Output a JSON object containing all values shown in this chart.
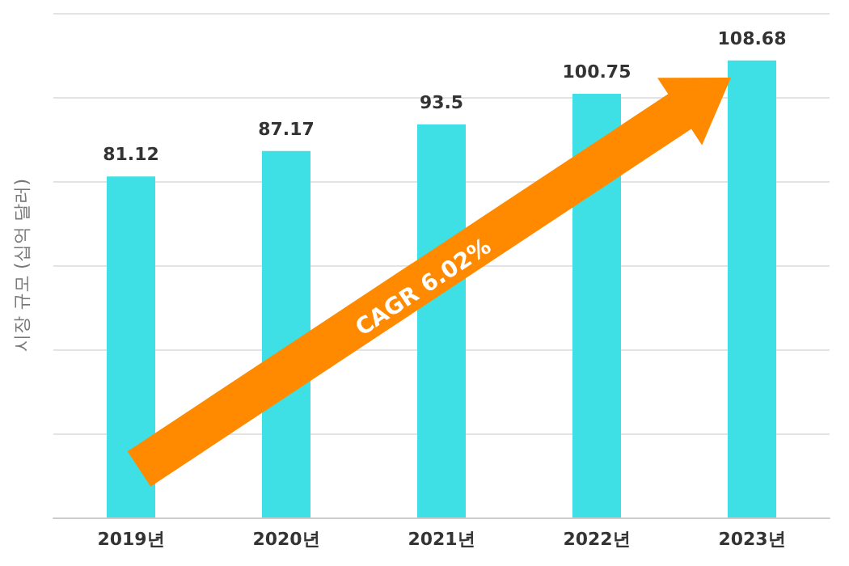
{
  "chart_data": {
    "type": "bar",
    "ylabel": "시장 규모 (십억 달러)",
    "categories": [
      "2019년",
      "2020년",
      "2021년",
      "2022년",
      "2023년"
    ],
    "values": [
      81.12,
      87.17,
      93.5,
      100.75,
      108.68
    ],
    "color": "#3ee0e6",
    "data_labels": true,
    "ylim": [
      0,
      120
    ],
    "yticks": [
      {
        "value": 0,
        "label": null
      },
      {
        "value": 20,
        "label": null
      },
      {
        "value": 40,
        "label": null
      },
      {
        "value": 60,
        "label": null
      },
      {
        "value": 80,
        "label": null
      },
      {
        "value": 100,
        "label": null
      },
      {
        "value": 120,
        "label": null
      }
    ],
    "tick_labels": "x",
    "grid": "y",
    "annotations": [
      "CAGR 6.02%"
    ]
  }
}
